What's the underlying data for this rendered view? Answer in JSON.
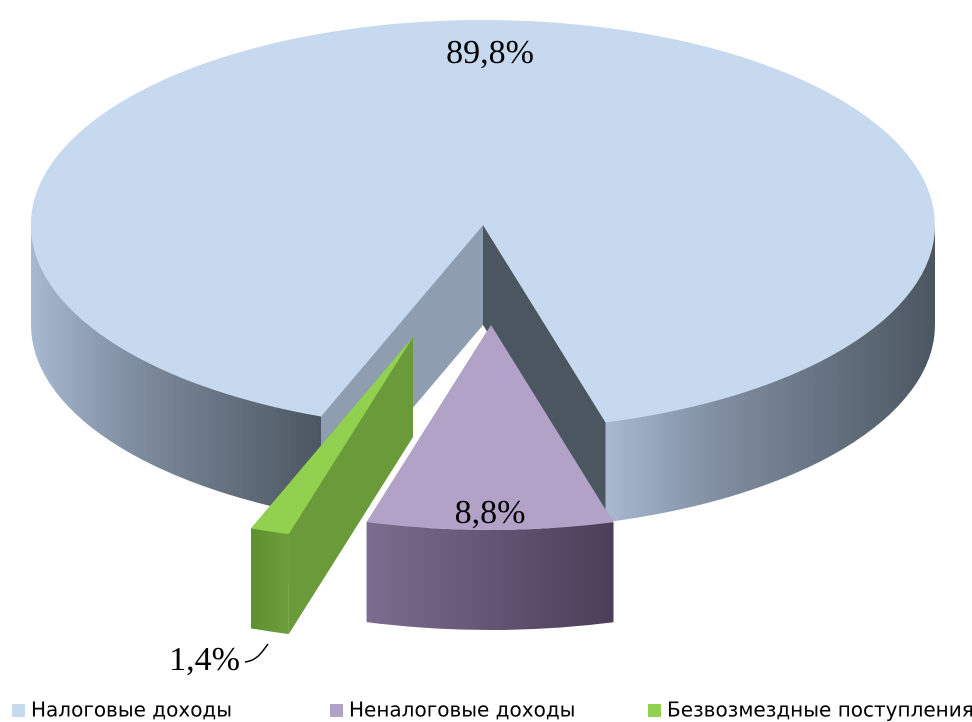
{
  "chart_data": {
    "type": "pie",
    "categories": [
      "Налоговые доходы",
      "Неналоговые доходы",
      "Безвозмездные поступления"
    ],
    "values": [
      89.8,
      8.8,
      1.4
    ],
    "value_labels": [
      "89,8%",
      "8,8%",
      "1,4%"
    ],
    "colors": [
      "#c6d9ef",
      "#b3a2c7",
      "#92d050"
    ],
    "legend": "bottom"
  }
}
